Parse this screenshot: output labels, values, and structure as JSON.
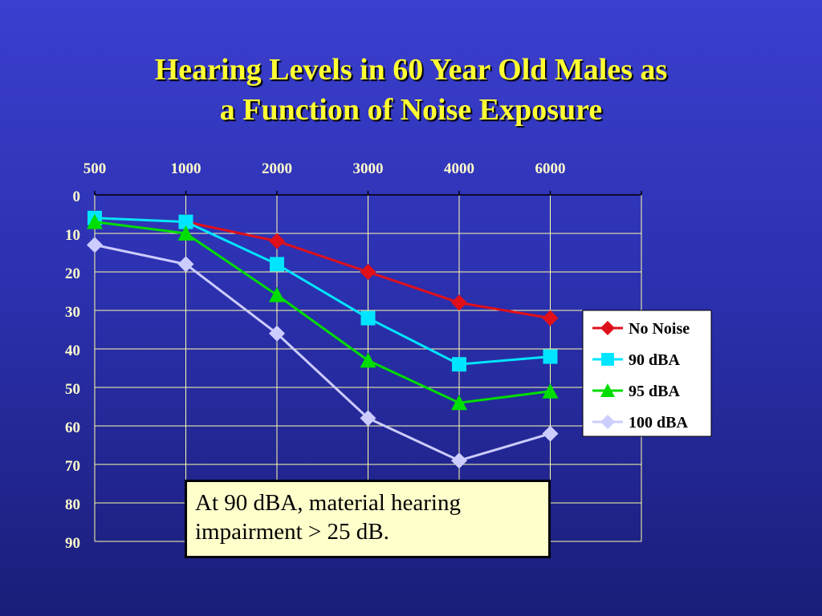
{
  "title": {
    "line1": "Hearing Levels in 60 Year Old Males as",
    "line2": "a Function of Noise Exposure"
  },
  "callout": {
    "line1": "At 90 dBA, material hearing",
    "line2": "impairment > 25 dB."
  },
  "colors": {
    "title": "#ffff33",
    "axis_text": "#ffffcc",
    "grid": "#ffffaa",
    "legend_bg": "#ffffff",
    "callout_bg": "#ffffcc"
  },
  "chart_data": {
    "type": "line",
    "title": "Hearing Levels in 60 Year Old Males as a Function of Noise Exposure",
    "categories": [
      "500",
      "1000",
      "2000",
      "3000",
      "4000",
      "6000"
    ],
    "y_ticks": [
      "0",
      "10",
      "20",
      "30",
      "40",
      "50",
      "60",
      "70",
      "80",
      "90"
    ],
    "ylim": [
      0,
      90
    ],
    "y_inverted": true,
    "x_axis_position": "top",
    "grid": true,
    "legend_position": "right",
    "series": [
      {
        "name": "No Noise",
        "color": "#e0101a",
        "marker": "diamond",
        "values": [
          6,
          7,
          12,
          20,
          28,
          32
        ]
      },
      {
        "name": "90 dBA",
        "color": "#00e5ff",
        "marker": "square",
        "values": [
          6,
          7,
          18,
          32,
          44,
          42
        ]
      },
      {
        "name": "95 dBA",
        "color": "#00dd00",
        "marker": "triangle",
        "values": [
          7,
          10,
          26,
          43,
          54,
          51
        ]
      },
      {
        "name": "100 dBA",
        "color": "#ccccff",
        "marker": "diamond",
        "values": [
          13,
          18,
          36,
          58,
          69,
          62
        ]
      }
    ]
  }
}
